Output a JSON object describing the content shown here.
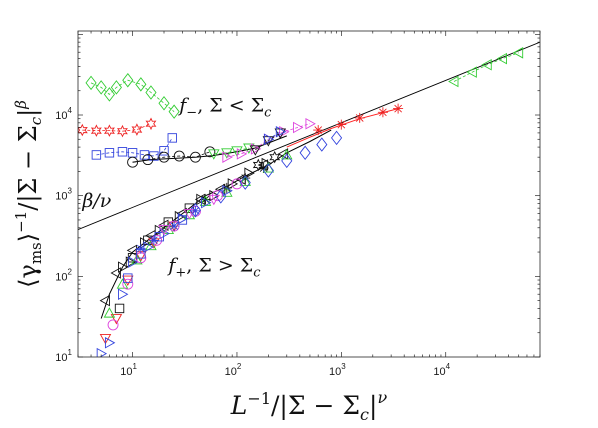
{
  "chart_data": {
    "type": "scatter",
    "title": "",
    "xscale": "log",
    "yscale": "log",
    "xlim": [
      3,
      80000
    ],
    "ylim": [
      10,
      110000
    ],
    "grid": false,
    "legend": "none",
    "x_ticks": [
      {
        "value": 10,
        "base": "10",
        "exp": "1"
      },
      {
        "value": 100,
        "base": "10",
        "exp": "2"
      },
      {
        "value": 1000,
        "base": "10",
        "exp": "3"
      },
      {
        "value": 10000,
        "base": "10",
        "exp": "4"
      }
    ],
    "y_ticks": [
      {
        "value": 10,
        "base": "10",
        "exp": "1"
      },
      {
        "value": 100,
        "base": "10",
        "exp": "2"
      },
      {
        "value": 1000,
        "base": "10",
        "exp": "3"
      },
      {
        "value": 10000,
        "base": "10",
        "exp": "4"
      }
    ],
    "xlabel": {
      "pre": "L",
      "pre_sup": "−1",
      "mid": "/|Σ − Σ",
      "sub": "c",
      "post": "|",
      "post_sup": "ν"
    },
    "ylabel": {
      "pre": "⟨γ",
      "sub": "ms",
      "mid": "⟩",
      "sup1": "−1",
      "rest": "/|Σ − Σ",
      "sub2": "c",
      "post": "|",
      "sup2": "β"
    },
    "annotations": {
      "slope": {
        "text": "β/ν",
        "x": 3.3,
        "y": 720
      },
      "f_minus": {
        "f": "f",
        "sub": "−",
        "rest": ", Σ < Σ",
        "sub2": "c",
        "x": 28,
        "y": 11000
      },
      "f_plus": {
        "f": "f",
        "sub": "+",
        "rest": ", Σ > Σ",
        "sub2": "c",
        "x": 22,
        "y": 115
      }
    },
    "reference_line": {
      "color": "#000000",
      "points": [
        [
          3,
          380
        ],
        [
          80000,
          80000
        ]
      ]
    },
    "branch_curves": [
      {
        "name": "f_plus_fit",
        "color": "#000000",
        "points": [
          [
            5,
            30
          ],
          [
            6,
            60
          ],
          [
            8,
            130
          ],
          [
            10,
            200
          ],
          [
            15,
            300
          ],
          [
            20,
            400
          ],
          [
            30,
            600
          ],
          [
            50,
            1000
          ],
          [
            80,
            1300
          ],
          [
            120,
            1750
          ],
          [
            200,
            2400
          ],
          [
            300,
            3400
          ],
          [
            500,
            4700
          ],
          [
            800,
            6500
          ]
        ]
      },
      {
        "name": "f_minus_fit",
        "color": "#000000",
        "points": [
          [
            10,
            2600
          ],
          [
            15,
            2800
          ],
          [
            25,
            2900
          ],
          [
            40,
            3000
          ],
          [
            60,
            3150
          ],
          [
            100,
            3500
          ],
          [
            150,
            3900
          ],
          [
            200,
            4500
          ],
          [
            300,
            5500
          ]
        ]
      },
      {
        "name": "f_plus_high",
        "color": "#ff2222",
        "points": [
          [
            300,
            4000
          ],
          [
            500,
            5300
          ],
          [
            800,
            6800
          ],
          [
            1500,
            9000
          ],
          [
            3500,
            12000
          ]
        ]
      }
    ],
    "series": [
      {
        "marker": "diamond",
        "color": "#33cc33",
        "dash": true,
        "points": [
          [
            4,
            25000
          ],
          [
            5,
            22000
          ],
          [
            6,
            18000
          ],
          [
            7,
            22000
          ],
          [
            9,
            27000
          ],
          [
            12,
            24000
          ],
          [
            15,
            19000
          ],
          [
            20,
            14000
          ],
          [
            25,
            11000
          ]
        ]
      },
      {
        "marker": "triangle-left",
        "color": "#33cc33",
        "dash": true,
        "points": [
          [
            12000,
            26000
          ],
          [
            18000,
            34000
          ],
          [
            25000,
            42000
          ],
          [
            35000,
            50000
          ],
          [
            50000,
            59000
          ]
        ]
      },
      {
        "marker": "hexagram",
        "color": "#ee2222",
        "dash": true,
        "points": [
          [
            3.3,
            6500
          ],
          [
            4.5,
            6400
          ],
          [
            6,
            6400
          ],
          [
            8,
            6300
          ],
          [
            11,
            6600
          ],
          [
            15,
            7800
          ]
        ]
      },
      {
        "marker": "square",
        "color": "#3344dd",
        "dash": true,
        "points": [
          [
            4.5,
            3200
          ],
          [
            6,
            3400
          ],
          [
            8,
            3500
          ],
          [
            10,
            3400
          ],
          [
            13,
            3200
          ],
          [
            16,
            3100
          ],
          [
            20,
            3600
          ],
          [
            24,
            5200
          ]
        ]
      },
      {
        "marker": "circle",
        "color": "#111111",
        "dash": true,
        "points": [
          [
            10,
            2600
          ],
          [
            14,
            2800
          ],
          [
            20,
            3000
          ],
          [
            28,
            3100
          ],
          [
            40,
            3000
          ],
          [
            55,
            3500
          ]
        ]
      },
      {
        "marker": "triangle-down",
        "color": "#33cc33",
        "dash": true,
        "points": [
          [
            60,
            3300
          ],
          [
            80,
            3400
          ],
          [
            100,
            3600
          ],
          [
            130,
            3900
          ]
        ]
      },
      {
        "marker": "triangle-right",
        "color": "#dd44dd",
        "dash": true,
        "points": [
          [
            80,
            3000
          ],
          [
            110,
            3300
          ],
          [
            150,
            3800
          ],
          [
            200,
            5000
          ],
          [
            280,
            6200
          ],
          [
            380,
            7000
          ],
          [
            500,
            7800
          ]
        ]
      },
      {
        "marker": "triangle-down",
        "color": "#111111",
        "dash": true,
        "points": [
          [
            150,
            3700
          ],
          [
            200,
            4800
          ],
          [
            260,
            6000
          ]
        ]
      },
      {
        "marker": "triangle-right",
        "color": "#3344dd",
        "dash": true,
        "points": [
          [
            200,
            5000
          ],
          [
            260,
            6200
          ]
        ]
      },
      {
        "marker": "asterisk",
        "color": "#ee2222",
        "dash": false,
        "points": [
          [
            600,
            6500
          ],
          [
            1000,
            7600
          ],
          [
            1500,
            9200
          ],
          [
            2500,
            10800
          ],
          [
            3500,
            12000
          ]
        ]
      },
      {
        "marker": "asterisk",
        "color": "#111111",
        "dash": false,
        "points": [
          [
            50,
            900
          ],
          [
            80,
            1250
          ],
          [
            120,
            1650
          ],
          [
            180,
            2200
          ]
        ]
      },
      {
        "marker": "triangle-left",
        "color": "#111111",
        "dash": false,
        "points": [
          [
            5.5,
            50
          ],
          [
            7,
            110
          ],
          [
            10,
            210
          ],
          [
            15,
            320
          ],
          [
            20,
            430
          ],
          [
            30,
            600
          ],
          [
            45,
            900
          ],
          [
            70,
            1200
          ],
          [
            110,
            1600
          ],
          [
            180,
            2400
          ],
          [
            280,
            3300
          ]
        ]
      },
      {
        "marker": "triangle-right",
        "color": "#111111",
        "dash": false,
        "points": [
          [
            8,
            130
          ],
          [
            9.5,
            150
          ],
          [
            13,
            260
          ],
          [
            18,
            370
          ],
          [
            28,
            550
          ],
          [
            45,
            900
          ],
          [
            60,
            1000
          ],
          [
            90,
            1400
          ],
          [
            130,
            1900
          ],
          [
            190,
            2500
          ]
        ]
      },
      {
        "marker": "square",
        "color": "#111111",
        "dash": false,
        "points": [
          [
            7.5,
            40
          ],
          [
            10,
            170
          ],
          [
            14,
            280
          ],
          [
            22,
            470
          ],
          [
            35,
            700
          ]
        ]
      },
      {
        "marker": "triangle-down",
        "color": "#ee2222",
        "dash": false,
        "points": [
          [
            5.5,
            17
          ],
          [
            7,
            30
          ],
          [
            9,
            90
          ],
          [
            12,
            180
          ],
          [
            16,
            260
          ],
          [
            25,
            420
          ]
        ]
      },
      {
        "marker": "triangle-up",
        "color": "#33cc33",
        "dash": false,
        "points": [
          [
            6,
            35
          ],
          [
            8,
            80
          ],
          [
            11,
            160
          ],
          [
            15,
            240
          ],
          [
            22,
            380
          ],
          [
            35,
            580
          ],
          [
            50,
            850
          ],
          [
            80,
            1100
          ],
          [
            120,
            1500
          ],
          [
            200,
            2200
          ],
          [
            300,
            3200
          ]
        ]
      },
      {
        "marker": "triangle-right",
        "color": "#3344dd",
        "dash": false,
        "points": [
          [
            5,
            11
          ],
          [
            6,
            15
          ],
          [
            8,
            60
          ],
          [
            10,
            150
          ],
          [
            14,
            230
          ],
          [
            20,
            340
          ],
          [
            30,
            520
          ],
          [
            50,
            820
          ],
          [
            80,
            1150
          ]
        ]
      },
      {
        "marker": "circle",
        "color": "#dd44dd",
        "dash": false,
        "points": [
          [
            6.5,
            25
          ],
          [
            9,
            80
          ],
          [
            12,
            170
          ],
          [
            17,
            280
          ],
          [
            25,
            420
          ],
          [
            40,
            640
          ],
          [
            65,
            1000
          ],
          [
            100,
            1400
          ]
        ]
      },
      {
        "marker": "square",
        "color": "#3344dd",
        "dash": false,
        "points": [
          [
            9,
            95
          ],
          [
            12,
            190
          ],
          [
            18,
            310
          ],
          [
            30,
            500
          ]
        ]
      },
      {
        "marker": "diamond",
        "color": "#3344dd",
        "dash": false,
        "points": [
          [
            40,
            660
          ],
          [
            70,
            980
          ],
          [
            120,
            1450
          ],
          [
            200,
            2050
          ],
          [
            300,
            2700
          ],
          [
            450,
            3400
          ],
          [
            650,
            4300
          ],
          [
            900,
            5200
          ]
        ]
      },
      {
        "marker": "triangle-down",
        "color": "#dd44dd",
        "dash": false,
        "points": [
          [
            20,
            380
          ],
          [
            35,
            600
          ],
          [
            60,
            900
          ]
        ]
      },
      {
        "marker": "asterisk",
        "color": "#3344dd",
        "dash": false,
        "points": [
          [
            12,
            220
          ],
          [
            16,
            280
          ],
          [
            25,
            420
          ],
          [
            40,
            650
          ]
        ]
      },
      {
        "marker": "hexagram",
        "color": "#111111",
        "dash": false,
        "points": [
          [
            160,
            2400
          ],
          [
            230,
            3000
          ]
        ]
      }
    ]
  }
}
